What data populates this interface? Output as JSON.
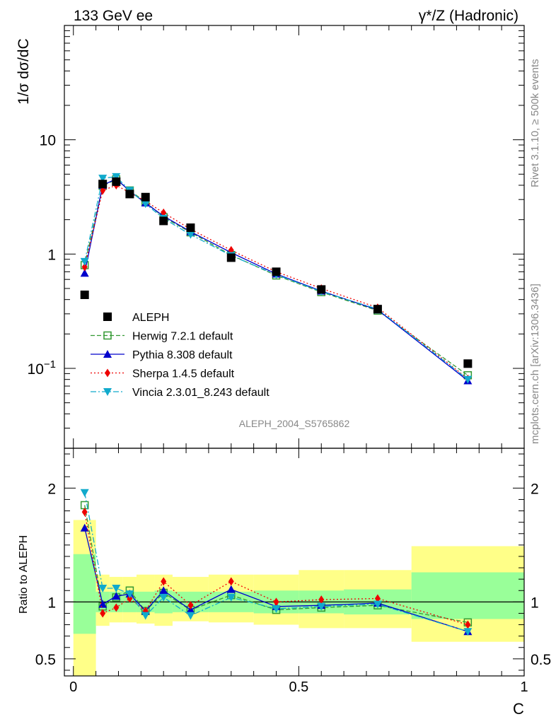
{
  "header": {
    "left_title": "133 GeV ee",
    "right_title": "γ*/Z (Hadronic)",
    "side_label_top": "Rivet 3.1.10, ≥ 500k events",
    "side_label_bottom": "mcplots.cern.ch [arXiv:1306.3436]",
    "analysis_id": "ALEPH_2004_S5765862"
  },
  "chart_data": {
    "type": "scatter",
    "main": {
      "ylabel": "1/σ  dσ/dC",
      "yscale": "log",
      "ylim": [
        0.02,
        100
      ],
      "xlim": [
        -0.02,
        1.0
      ],
      "yticks": [
        {
          "value": 0.1,
          "base": "10",
          "exp": "−1"
        },
        {
          "value": 1,
          "label": "1"
        },
        {
          "value": 10,
          "label": "10"
        }
      ]
    },
    "ratio": {
      "ylabel": "Ratio to ALEPH",
      "ylim": [
        0.35,
        2.35
      ],
      "yticks": [
        {
          "value": 0.5,
          "label": "0.5"
        },
        {
          "value": 1,
          "label": "1"
        },
        {
          "value": 2,
          "label": "2"
        }
      ],
      "reference": 1
    },
    "xlabel": "C",
    "xticks": [
      {
        "value": 0,
        "label": "0"
      },
      {
        "value": 0.5,
        "label": "0.5"
      },
      {
        "value": 1,
        "label": "1"
      }
    ],
    "bins": [
      {
        "lo": 0.0,
        "hi": 0.05,
        "x": 0.025
      },
      {
        "lo": 0.05,
        "hi": 0.08,
        "x": 0.065
      },
      {
        "lo": 0.08,
        "hi": 0.11,
        "x": 0.095
      },
      {
        "lo": 0.11,
        "hi": 0.14,
        "x": 0.125
      },
      {
        "lo": 0.14,
        "hi": 0.18,
        "x": 0.16
      },
      {
        "lo": 0.18,
        "hi": 0.22,
        "x": 0.2
      },
      {
        "lo": 0.22,
        "hi": 0.3,
        "x": 0.26
      },
      {
        "lo": 0.3,
        "hi": 0.4,
        "x": 0.35
      },
      {
        "lo": 0.4,
        "hi": 0.5,
        "x": 0.45
      },
      {
        "lo": 0.5,
        "hi": 0.6,
        "x": 0.55
      },
      {
        "lo": 0.6,
        "hi": 0.75,
        "x": 0.675
      },
      {
        "lo": 0.75,
        "hi": 1.0,
        "x": 0.875
      }
    ],
    "data": {
      "name": "ALEPH",
      "values": [
        0.44,
        4.1,
        4.3,
        3.35,
        3.15,
        1.95,
        1.7,
        0.93,
        0.7,
        0.49,
        0.33,
        0.11
      ]
    },
    "band_stat": {
      "lo": [
        0.72,
        0.91,
        0.91,
        0.91,
        0.91,
        0.9,
        0.91,
        0.91,
        0.9,
        0.9,
        0.89,
        0.85
      ],
      "hi": [
        1.42,
        1.09,
        1.09,
        1.09,
        1.09,
        1.1,
        1.09,
        1.09,
        1.1,
        1.1,
        1.11,
        1.26
      ]
    },
    "band_total": {
      "lo": [
        0.35,
        0.79,
        0.82,
        0.82,
        0.81,
        0.79,
        0.83,
        0.82,
        0.8,
        0.77,
        0.77,
        0.65
      ],
      "hi": [
        1.72,
        1.24,
        1.22,
        1.22,
        1.24,
        1.24,
        1.22,
        1.24,
        1.24,
        1.28,
        1.28,
        1.49
      ]
    },
    "series": [
      {
        "name": "Herwig 7.2.1 default",
        "color": "#339933",
        "marker": "open-square",
        "dash": "6,3",
        "values": [
          0.8,
          3.95,
          4.5,
          3.6,
          2.85,
          2.1,
          1.55,
          0.98,
          0.65,
          0.465,
          0.32,
          0.087
        ]
      },
      {
        "name": "Pythia 8.308 default",
        "color": "#0000cc",
        "marker": "triangle-up",
        "dash": "",
        "values": [
          0.68,
          4.0,
          4.55,
          3.55,
          2.8,
          2.15,
          1.57,
          1.03,
          0.67,
          0.475,
          0.325,
          0.078
        ]
      },
      {
        "name": "Sherpa 1.4.5 default",
        "color": "#ee0000",
        "marker": "diamond",
        "dash": "2,3",
        "values": [
          0.77,
          3.6,
          4.0,
          3.45,
          2.9,
          2.3,
          1.65,
          1.08,
          0.7,
          0.5,
          0.34,
          0.081
        ]
      },
      {
        "name": "Vincia 2.3.01_8.243 default",
        "color": "#11aacc",
        "marker": "triangle-down",
        "dash": "8,3,2,3",
        "values": [
          0.86,
          4.6,
          4.75,
          3.6,
          2.75,
          2.05,
          1.48,
          0.97,
          0.66,
          0.47,
          0.33,
          0.08
        ]
      }
    ],
    "ratios": [
      [
        1.85,
        0.96,
        1.04,
        1.1,
        0.92,
        1.08,
        0.93,
        1.06,
        0.93,
        0.95,
        0.97,
        0.82
      ],
      [
        1.65,
        0.98,
        1.05,
        1.07,
        0.92,
        1.1,
        0.93,
        1.11,
        0.96,
        0.97,
        0.99,
        0.74
      ],
      [
        1.79,
        0.9,
        0.95,
        1.03,
        0.92,
        1.18,
        0.97,
        1.18,
        1.0,
        1.02,
        1.03,
        0.8
      ],
      [
        1.96,
        1.12,
        1.12,
        1.07,
        0.88,
        1.04,
        0.88,
        1.04,
        0.94,
        0.96,
        0.98,
        0.74
      ]
    ]
  }
}
